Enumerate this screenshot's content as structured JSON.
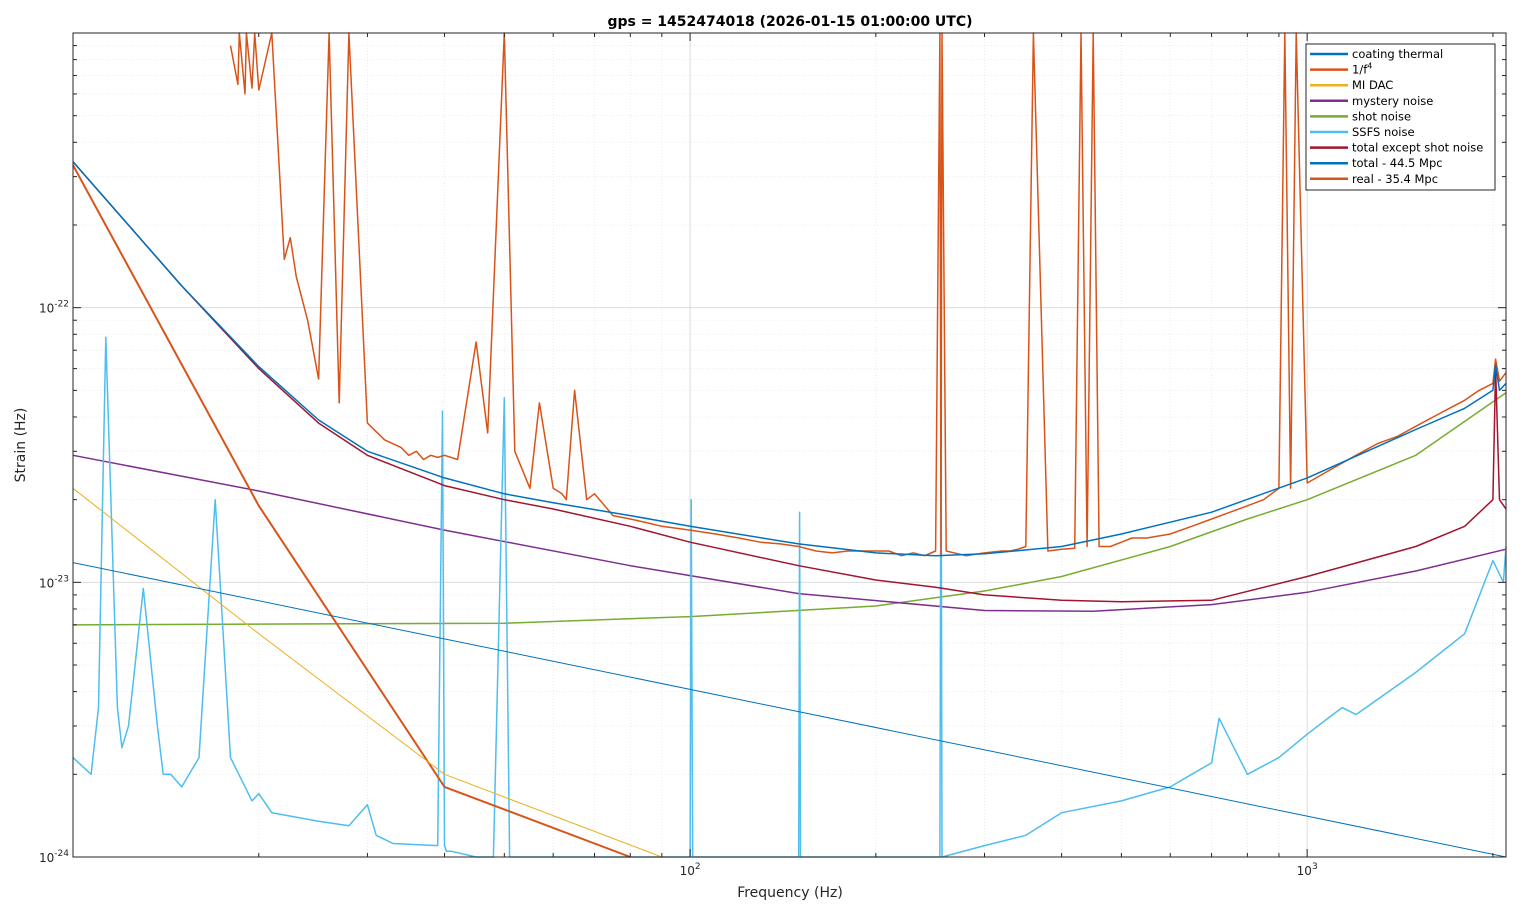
{
  "chart_data": {
    "type": "line",
    "title": "gps = 1452474018 (2026-01-15 01:00:00 UTC)",
    "xlabel": "Frequency (Hz)",
    "ylabel": "Strain (Hz)",
    "xscale": "log",
    "yscale": "log",
    "xlim": [
      10,
      2100
    ],
    "ylim": [
      1e-24,
      1e-21
    ],
    "x_ticks": [
      {
        "value": 100,
        "label": "10",
        "exp": "2"
      },
      {
        "value": 1000,
        "label": "10",
        "exp": "3"
      }
    ],
    "y_ticks": [
      {
        "value": 1e-24,
        "label": "10",
        "exp": "-24"
      },
      {
        "value": 1e-23,
        "label": "10",
        "exp": "-23"
      },
      {
        "value": 1e-22,
        "label": "10",
        "exp": "-22"
      }
    ],
    "grid": true,
    "legend_position": "top-right",
    "series": [
      {
        "name": "coating thermal",
        "color": "#0072BD",
        "width": 1,
        "x": [
          10,
          2100
        ],
        "y": [
          1.18e-23,
          1e-24
        ]
      },
      {
        "name": "1/f",
        "name_sup": "4",
        "color": "#D95319",
        "width": 2,
        "x": [
          10,
          20,
          40,
          80
        ],
        "y": [
          3.3e-22,
          1.9e-23,
          1.8e-24,
          1e-24
        ]
      },
      {
        "name": "MI DAC",
        "color": "#EDB120",
        "width": 1,
        "x": [
          10,
          20,
          40,
          90
        ],
        "y": [
          2.2e-23,
          6.5e-24,
          2e-24,
          1e-24
        ]
      },
      {
        "name": "mystery noise",
        "color": "#7E2F8E",
        "width": 1.5,
        "x": [
          10,
          20,
          40,
          80,
          150,
          300,
          450,
          700,
          1000,
          1500,
          2100
        ],
        "y": [
          2.9e-23,
          2.15e-23,
          1.55e-23,
          1.15e-23,
          9.1e-24,
          7.9e-24,
          7.85e-24,
          8.3e-24,
          9.2e-24,
          1.1e-23,
          1.32e-23
        ]
      },
      {
        "name": "shot noise",
        "color": "#77AC30",
        "width": 1.5,
        "x": [
          10,
          50,
          100,
          200,
          300,
          400,
          600,
          800,
          1000,
          1500,
          2100
        ],
        "y": [
          7e-24,
          7.1e-24,
          7.5e-24,
          8.2e-24,
          9.3e-24,
          1.05e-23,
          1.35e-23,
          1.7e-23,
          2e-23,
          2.9e-23,
          4.9e-23
        ]
      },
      {
        "name": "SSFS noise",
        "color": "#4DBEEE",
        "width": 1.5,
        "x": [
          10,
          10.7,
          11,
          11.3,
          11.8,
          12,
          12.3,
          13,
          13.7,
          14,
          14.4,
          15,
          16,
          17,
          18,
          19.5,
          20,
          21,
          25,
          28,
          30,
          31,
          33,
          39,
          39.7,
          40,
          40.3,
          41,
          45,
          48,
          50,
          51,
          51.4,
          52,
          55,
          63,
          70,
          80,
          100,
          100.4,
          101,
          130,
          150,
          150.5,
          151,
          200,
          250,
          254,
          255,
          256,
          300,
          350,
          400,
          500,
          600,
          650,
          700,
          720,
          800,
          900,
          1000,
          1100,
          1140,
          1200,
          1500,
          1800,
          2000,
          2080,
          2100
        ],
        "y": [
          2.3e-24,
          2e-24,
          3.5e-24,
          7.8e-23,
          3.5e-24,
          2.5e-24,
          3e-24,
          9.5e-24,
          3e-24,
          2e-24,
          2e-24,
          1.8e-24,
          2.3e-24,
          2e-23,
          2.3e-24,
          1.6e-24,
          1.7e-24,
          1.45e-24,
          1.35e-24,
          1.3e-24,
          1.55e-24,
          1.2e-24,
          1.12e-24,
          1.1e-24,
          4.2e-23,
          1.1e-24,
          1.05e-24,
          1.05e-24,
          1e-24,
          1e-24,
          4.7e-23,
          1e-24,
          1e-24,
          1e-24,
          1e-24,
          1e-24,
          1e-24,
          1e-24,
          1e-24,
          2e-23,
          1e-24,
          1e-24,
          1e-24,
          1.8e-23,
          1e-24,
          1e-24,
          1e-24,
          1e-24,
          6e-23,
          1e-24,
          1.1e-24,
          1.2e-24,
          1.45e-24,
          1.6e-24,
          1.8e-24,
          2e-24,
          2.2e-24,
          3.2e-24,
          2e-24,
          2.3e-24,
          2.8e-24,
          3.3e-24,
          3.5e-24,
          3.3e-24,
          4.7e-24,
          6.5e-24,
          1.2e-23,
          1e-23,
          1.35e-23
        ]
      },
      {
        "name": "total except shot noise",
        "color": "#A2142F",
        "width": 1.5,
        "x": [
          10,
          15,
          20,
          25,
          30,
          40,
          50,
          60,
          80,
          100,
          150,
          200,
          250,
          300,
          400,
          500,
          700,
          1000,
          1500,
          1800,
          2000,
          2020,
          2050,
          2100
        ],
        "y": [
          3.4e-22,
          1.2e-22,
          6e-23,
          3.8e-23,
          2.9e-23,
          2.25e-23,
          2e-23,
          1.85e-23,
          1.6e-23,
          1.4e-23,
          1.15e-23,
          1.02e-23,
          9.6e-24,
          9e-24,
          8.6e-24,
          8.5e-24,
          8.6e-24,
          1.05e-23,
          1.35e-23,
          1.6e-23,
          2e-23,
          6e-23,
          2e-23,
          1.85e-23
        ]
      },
      {
        "name": "total - 44.5 Mpc",
        "color": "#0072BD",
        "width": 1.5,
        "x": [
          10,
          15,
          20,
          25,
          30,
          40,
          50,
          60,
          80,
          100,
          150,
          200,
          250,
          300,
          400,
          500,
          700,
          1000,
          1500,
          1800,
          2000,
          2020,
          2050,
          2100
        ],
        "y": [
          3.4e-22,
          1.2e-22,
          6.1e-23,
          3.9e-23,
          3e-23,
          2.4e-23,
          2.1e-23,
          1.95e-23,
          1.75e-23,
          1.6e-23,
          1.38e-23,
          1.28e-23,
          1.25e-23,
          1.27e-23,
          1.35e-23,
          1.5e-23,
          1.8e-23,
          2.4e-23,
          3.6e-23,
          4.3e-23,
          5e-23,
          6.2e-23,
          5e-23,
          5.3e-23
        ]
      },
      {
        "name": "real - 35.4 Mpc",
        "color": "#D95319",
        "width": 1.5,
        "x": [
          18,
          18.5,
          18.6,
          19,
          19.1,
          19.5,
          19.7,
          20,
          21,
          22,
          22.5,
          23,
          24,
          25,
          26,
          27,
          28,
          30,
          32,
          34,
          35,
          36,
          37,
          38,
          39,
          40,
          42,
          45,
          47,
          50,
          52,
          55,
          57,
          60,
          62,
          63,
          65,
          68,
          70,
          75,
          80,
          85,
          90,
          100,
          110,
          120,
          130,
          140,
          150,
          160,
          170,
          180,
          200,
          210,
          220,
          230,
          240,
          250,
          254,
          255,
          256,
          260,
          280,
          300,
          320,
          330,
          340,
          350,
          360,
          380,
          400,
          420,
          430,
          440,
          450,
          460,
          480,
          500,
          520,
          550,
          600,
          650,
          700,
          750,
          800,
          850,
          900,
          920,
          940,
          960,
          1000,
          1100,
          1200,
          1300,
          1400,
          1500,
          1600,
          1700,
          1800,
          1900,
          2000,
          2020,
          2050,
          2100
        ],
        "y": [
          9e-22,
          6.5e-22,
          1e-21,
          6e-22,
          1e-21,
          6.3e-22,
          1e-21,
          6.2e-22,
          1e-21,
          1.5e-22,
          1.8e-22,
          1.3e-22,
          9e-23,
          5.5e-23,
          1e-21,
          4.5e-23,
          1e-21,
          3.8e-23,
          3.3e-23,
          3.1e-23,
          2.9e-23,
          3e-23,
          2.8e-23,
          2.9e-23,
          2.85e-23,
          2.9e-23,
          2.8e-23,
          7.5e-23,
          3.5e-23,
          1e-21,
          3e-23,
          2.2e-23,
          4.5e-23,
          2.2e-23,
          2.1e-23,
          2e-23,
          5e-23,
          2e-23,
          2.1e-23,
          1.75e-23,
          1.7e-23,
          1.65e-23,
          1.6e-23,
          1.55e-23,
          1.5e-23,
          1.45e-23,
          1.4e-23,
          1.38e-23,
          1.35e-23,
          1.3e-23,
          1.28e-23,
          1.3e-23,
          1.3e-23,
          1.3e-23,
          1.25e-23,
          1.28e-23,
          1.25e-23,
          1.3e-23,
          1e-21,
          1.25e-23,
          1e-21,
          1.3e-23,
          1.25e-23,
          1.28e-23,
          1.3e-23,
          1.3e-23,
          1.32e-23,
          1.35e-23,
          1e-21,
          1.3e-23,
          1.32e-23,
          1.33e-23,
          1e-21,
          1.35e-23,
          1e-21,
          1.35e-23,
          1.35e-23,
          1.4e-23,
          1.45e-23,
          1.45e-23,
          1.5e-23,
          1.6e-23,
          1.7e-23,
          1.8e-23,
          1.9e-23,
          2e-23,
          2.2e-23,
          1e-21,
          2.2e-23,
          1e-21,
          2.3e-23,
          2.6e-23,
          2.9e-23,
          3.2e-23,
          3.4e-23,
          3.7e-23,
          4e-23,
          4.3e-23,
          4.6e-23,
          5e-23,
          5.3e-23,
          6.5e-23,
          5.4e-23,
          5.8e-23
        ]
      }
    ]
  }
}
